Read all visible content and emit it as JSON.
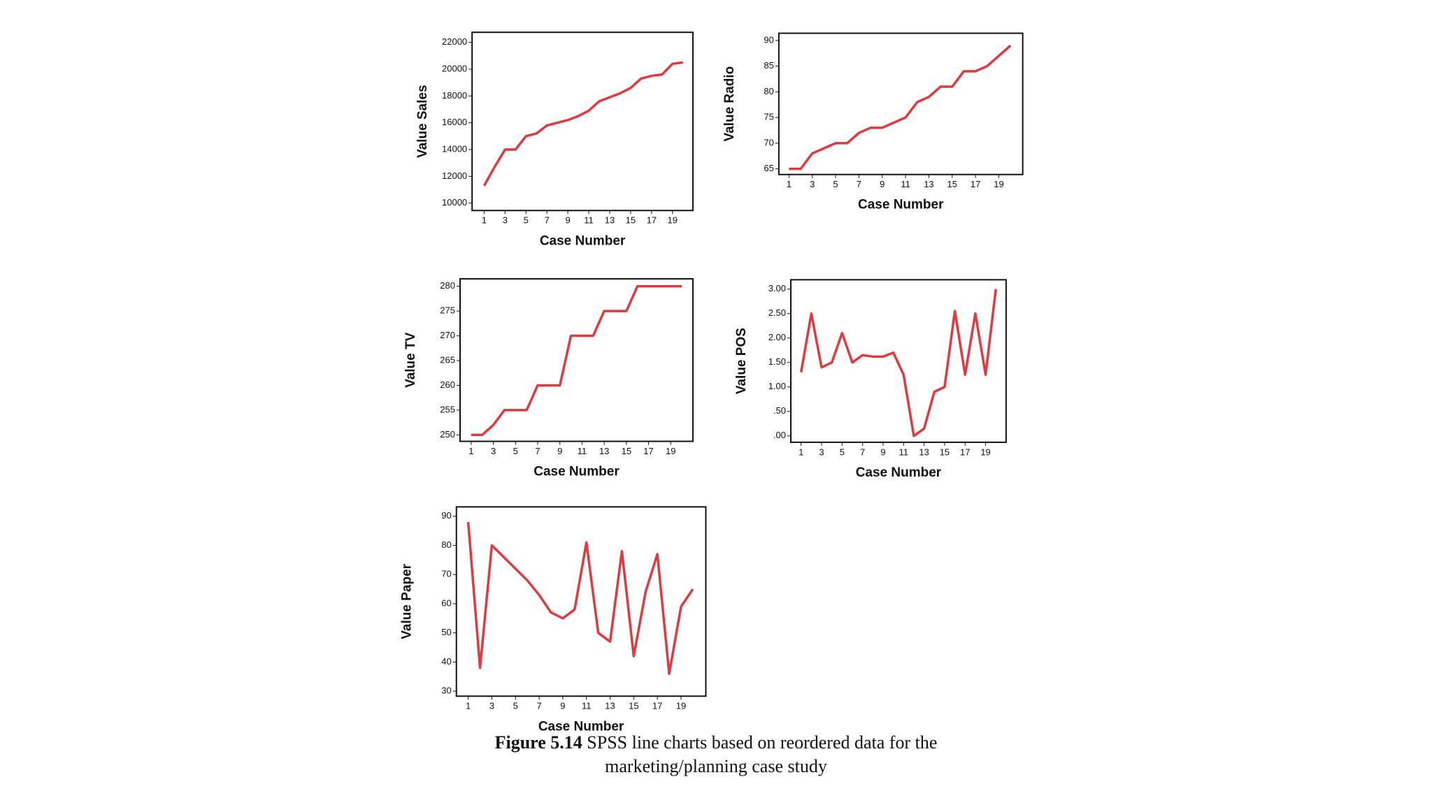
{
  "chart_data": [
    {
      "type": "line",
      "y_label": "Value Sales",
      "x_label": "Case Number",
      "color": "#e0393e",
      "x": [
        1,
        2,
        3,
        4,
        5,
        6,
        7,
        8,
        9,
        10,
        11,
        12,
        13,
        14,
        15,
        16,
        17,
        18,
        19,
        20
      ],
      "values": [
        11300,
        12700,
        14000,
        14000,
        15000,
        15200,
        15800,
        16000,
        16200,
        16500,
        16900,
        17600,
        17900,
        18200,
        18600,
        19300,
        19500,
        19600,
        20400,
        20500
      ],
      "xlim": [
        -0.15,
        20.95
      ],
      "ylim": [
        9450,
        22750
      ],
      "xticks": [
        1,
        3,
        5,
        7,
        9,
        11,
        13,
        15,
        17,
        19
      ],
      "yticks": [
        10000,
        12000,
        14000,
        16000,
        18000,
        20000,
        22000
      ]
    },
    {
      "type": "line",
      "y_label": "Value Radio",
      "x_label": "Case Number",
      "color": "#e0393e",
      "x": [
        1,
        2,
        3,
        4,
        5,
        6,
        7,
        8,
        9,
        10,
        11,
        12,
        13,
        14,
        15,
        16,
        17,
        18,
        19,
        20
      ],
      "values": [
        65,
        65,
        68,
        69,
        70,
        70,
        72,
        73,
        73,
        74,
        75,
        78,
        79,
        81,
        81,
        84,
        84,
        85,
        87,
        89
      ],
      "xlim": [
        0.13,
        21.05
      ],
      "ylim": [
        63.9,
        91.4
      ],
      "xticks": [
        1,
        3,
        5,
        7,
        9,
        11,
        13,
        15,
        17,
        19
      ],
      "yticks": [
        65,
        70,
        75,
        80,
        85,
        90
      ]
    },
    {
      "type": "line",
      "y_label": "Value TV",
      "x_label": "Case Number",
      "color": "#e0393e",
      "x": [
        1,
        2,
        3,
        4,
        5,
        6,
        7,
        8,
        9,
        10,
        11,
        12,
        13,
        14,
        15,
        16,
        17,
        18,
        19,
        20
      ],
      "values": [
        250,
        250,
        252,
        255,
        255,
        255,
        260,
        260,
        260,
        270,
        270,
        270,
        275,
        275,
        275,
        280,
        280,
        280,
        280,
        280
      ],
      "xlim": [
        0,
        21
      ],
      "ylim": [
        248.7,
        281.5
      ],
      "xticks": [
        1,
        3,
        5,
        7,
        9,
        11,
        13,
        15,
        17,
        19
      ],
      "yticks": [
        250,
        255,
        260,
        265,
        270,
        275,
        280
      ]
    },
    {
      "type": "line",
      "y_label": "Value POS",
      "x_label": "Case Number",
      "color": "#e0393e",
      "x": [
        1,
        2,
        3,
        4,
        5,
        6,
        7,
        8,
        9,
        10,
        11,
        12,
        13,
        14,
        15,
        16,
        17,
        18,
        19,
        20
      ],
      "values": [
        1.3,
        2.5,
        1.4,
        1.5,
        2.1,
        1.5,
        1.65,
        1.62,
        1.62,
        1.7,
        1.25,
        0,
        0.15,
        0.9,
        1,
        2.55,
        1.25,
        2.5,
        1.25,
        3
      ],
      "xlim": [
        0,
        21
      ],
      "ylim": [
        -0.13,
        3.19
      ],
      "xticks": [
        1,
        3,
        5,
        7,
        9,
        11,
        13,
        15,
        17,
        19
      ],
      "yticks": [
        {
          "value": 0,
          "label": ".00"
        },
        {
          "value": 0.5,
          "label": ".50"
        },
        {
          "value": 1,
          "label": "1.00"
        },
        {
          "value": 1.5,
          "label": "1.50"
        },
        {
          "value": 2,
          "label": "2.00"
        },
        {
          "value": 2.5,
          "label": "2.50"
        },
        {
          "value": 3,
          "label": "3.00"
        }
      ]
    },
    {
      "type": "line",
      "y_label": "Value Paper",
      "x_label": "Case Number",
      "color": "#e0393e",
      "x": [
        1,
        2,
        3,
        4,
        5,
        6,
        7,
        8,
        9,
        10,
        11,
        12,
        13,
        14,
        15,
        16,
        17,
        18,
        19,
        20
      ],
      "values": [
        88,
        38,
        80,
        76,
        72,
        68,
        63,
        57,
        55,
        58,
        81,
        50,
        47,
        78,
        42,
        64,
        77,
        36,
        59,
        65
      ],
      "xlim": [
        0,
        21.1
      ],
      "ylim": [
        28.3,
        93.2
      ],
      "xticks": [
        1,
        3,
        5,
        7,
        9,
        11,
        13,
        15,
        17,
        19
      ],
      "yticks": [
        30,
        40,
        50,
        60,
        70,
        80,
        90
      ]
    }
  ],
  "caption": {
    "label": "Figure 5.14",
    "text": "SPSS line charts based on reordered data for the marketing/planning case study"
  }
}
